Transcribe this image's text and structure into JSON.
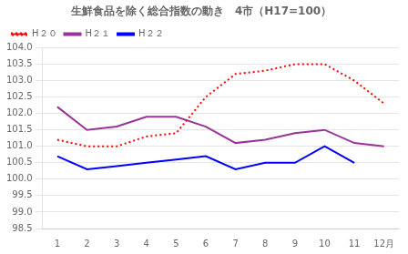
{
  "chart_data": {
    "type": "line",
    "title": "生鮮食品を除く総合指数の動き　4市（H17=100）",
    "categories": [
      "1",
      "2",
      "3",
      "4",
      "5",
      "6",
      "7",
      "8",
      "9",
      "10",
      "11",
      "12月"
    ],
    "series": [
      {
        "name": "H２０",
        "color": "#ff0000",
        "line_style": "dotted",
        "values": [
          101.2,
          101.0,
          101.0,
          101.3,
          101.4,
          102.5,
          103.2,
          103.3,
          103.5,
          103.5,
          103.0,
          102.3
        ]
      },
      {
        "name": "H２１",
        "color": "#993399",
        "line_style": "solid",
        "values": [
          102.2,
          101.5,
          101.6,
          101.9,
          101.9,
          101.6,
          101.1,
          101.2,
          101.4,
          101.5,
          101.1,
          101.0
        ]
      },
      {
        "name": "H２２",
        "color": "#0000ff",
        "line_style": "solid",
        "values": [
          100.7,
          100.3,
          100.4,
          100.5,
          100.6,
          100.7,
          100.3,
          100.5,
          100.5,
          101.0,
          100.5,
          null
        ]
      }
    ],
    "ylim": [
      98.5,
      104.0
    ],
    "yticks": [
      98.5,
      {
        "value": 99.0,
        "label": "99.0"
      },
      99.5,
      {
        "value": 100.0,
        "label": "100.0"
      },
      100.5,
      {
        "value": 101.0,
        "label": "101.0"
      },
      101.5,
      {
        "value": 102.0,
        "label": "102.0"
      },
      102.5,
      {
        "value": 103.0,
        "label": "103.0"
      },
      103.5,
      {
        "value": 104.0,
        "label": "104.0"
      }
    ],
    "grid": "y",
    "legend": "upper left"
  }
}
